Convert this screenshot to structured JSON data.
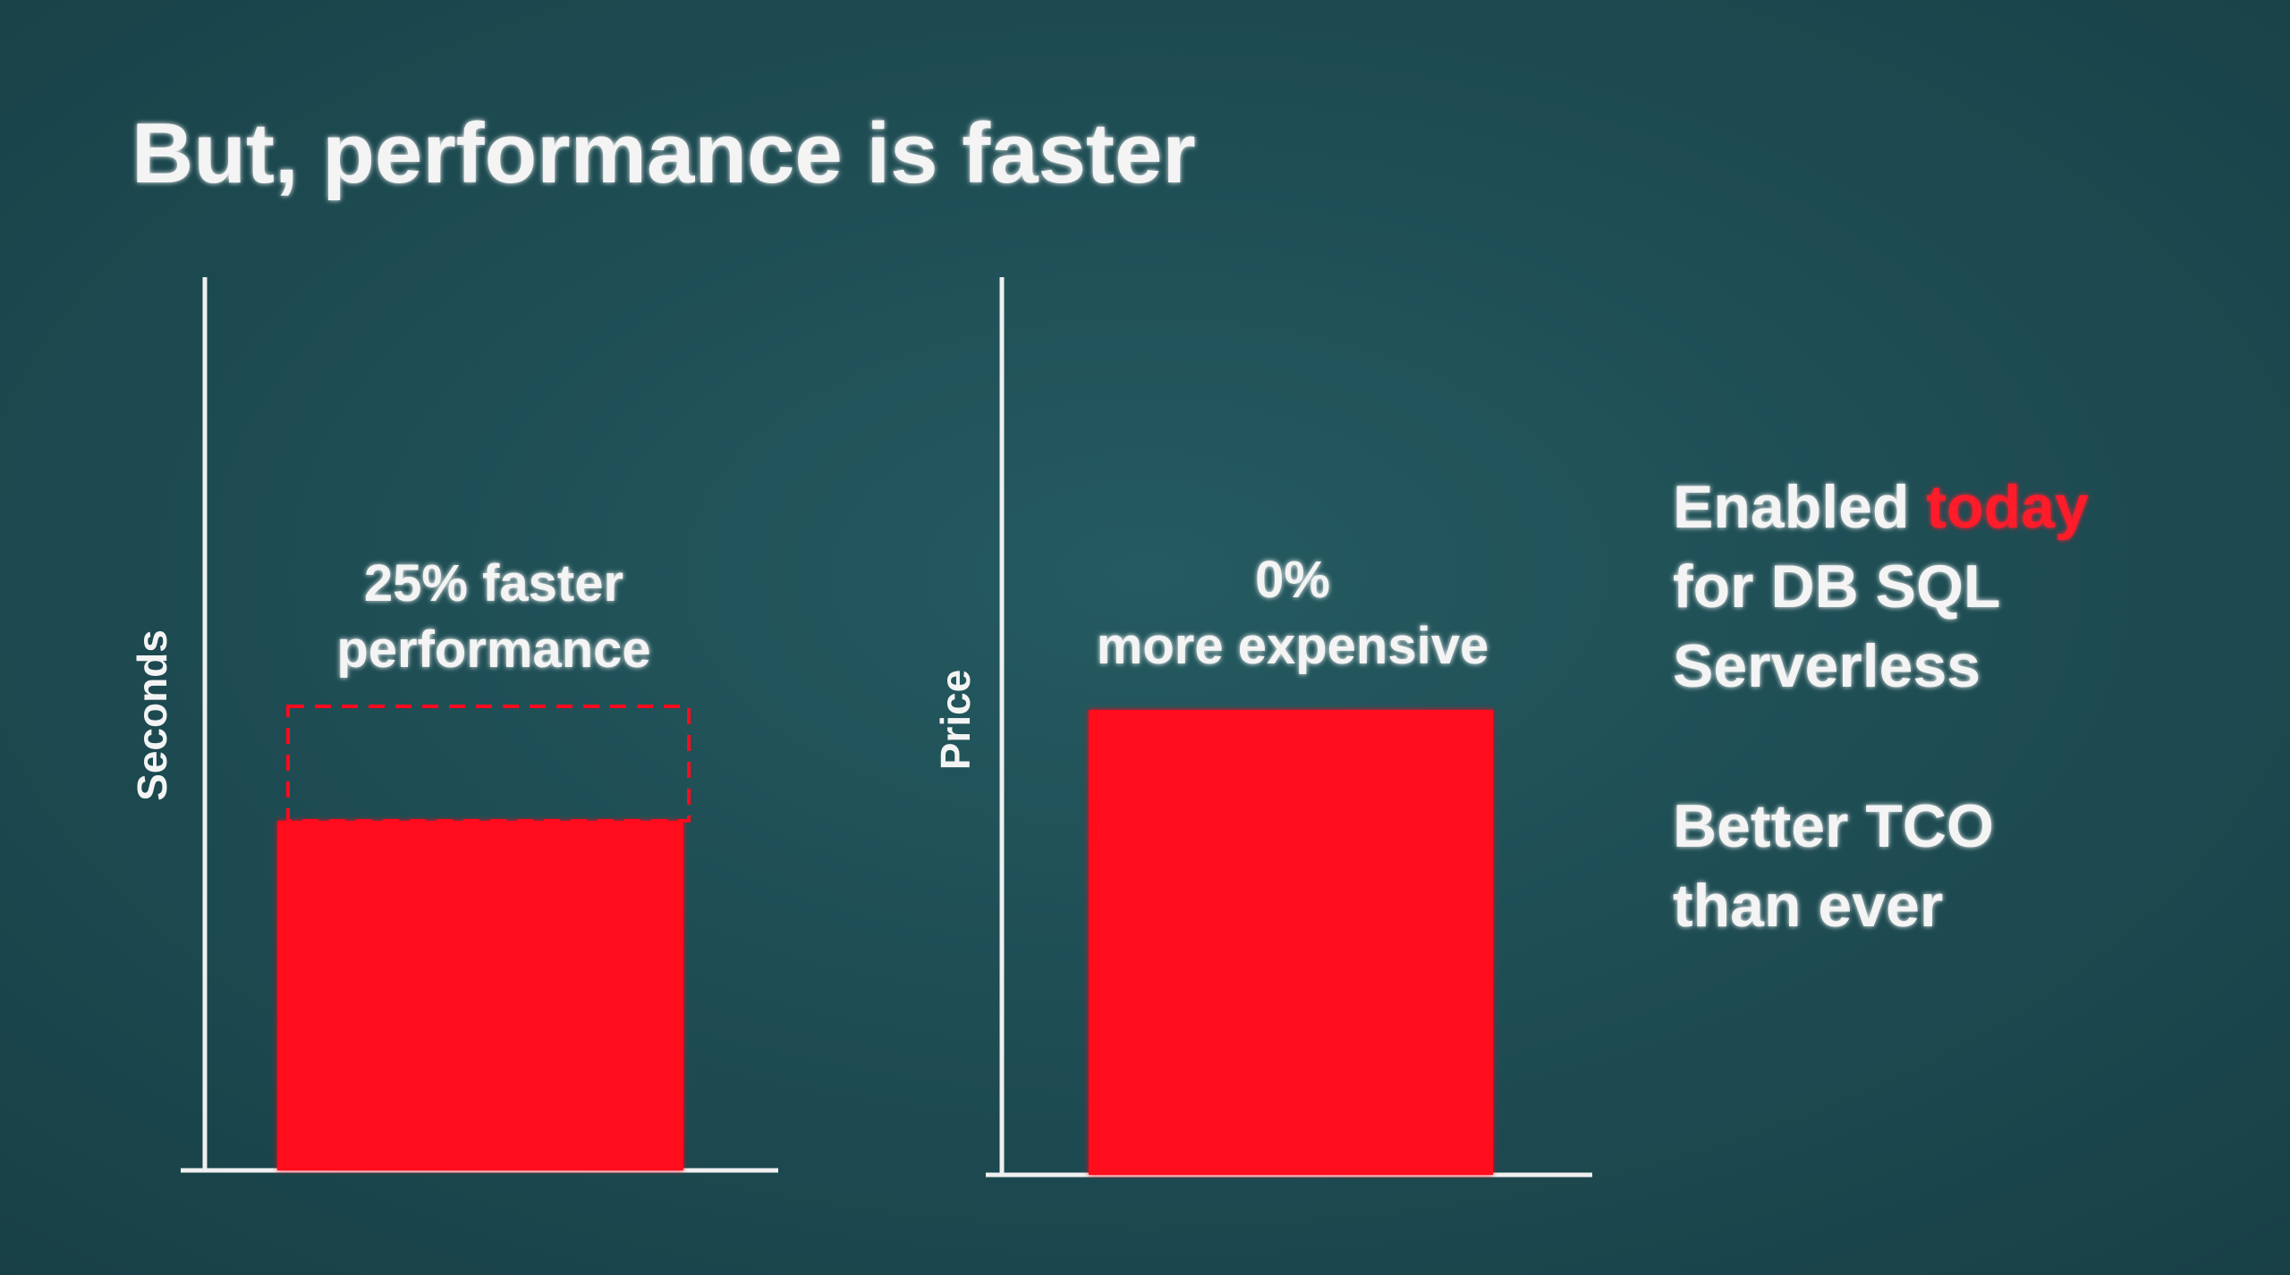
{
  "title": "But, performance is faster",
  "charts": [
    {
      "y_label": "Seconds",
      "annotation": [
        "25% faster",
        "performance"
      ]
    },
    {
      "y_label": "Price",
      "annotation": [
        "0%",
        "more expensive"
      ]
    }
  ],
  "side_text": {
    "enabled": [
      "Enabled",
      "today"
    ],
    "enabled_rest": [
      "for DB SQL",
      "Serverless"
    ],
    "tco": [
      "Better TCO",
      "than ever"
    ]
  }
}
